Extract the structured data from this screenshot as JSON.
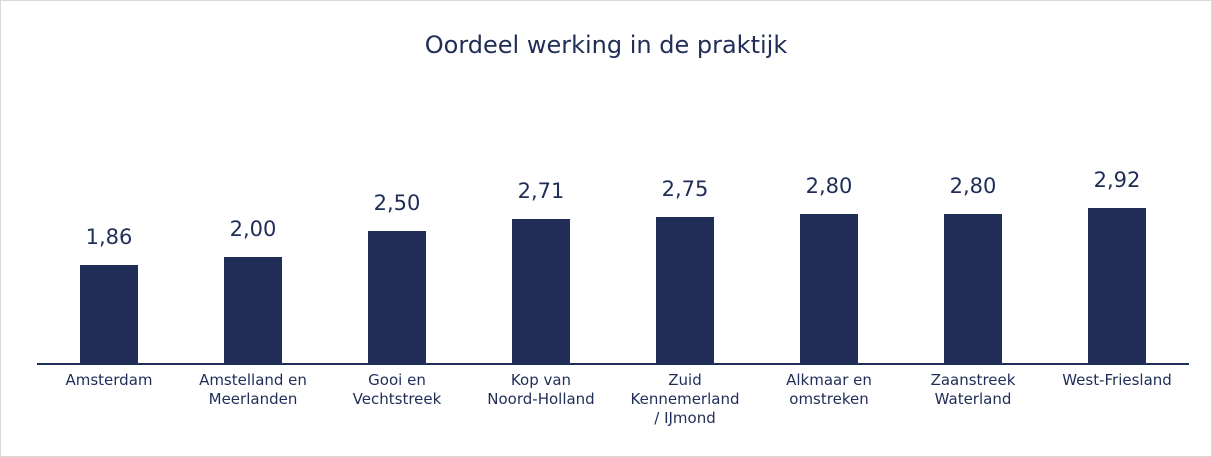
{
  "chart_data": {
    "type": "bar",
    "title": "Oordeel werking in de praktijk",
    "categories": [
      "Amsterdam",
      "Amstelland en\nMeerlanden",
      "Gooi en\nVechtstreek",
      "Kop van\nNoord-Holland",
      "Zuid\nKennemerland\n/ IJmond",
      "Alkmaar en\nomstreken",
      "Zaanstreek\nWaterland",
      "West-Friesland"
    ],
    "values": [
      1.86,
      2.0,
      2.5,
      2.71,
      2.75,
      2.8,
      2.8,
      2.92
    ],
    "value_labels": [
      "1,86",
      "2,00",
      "2,50",
      "2,71",
      "2,75",
      "2,80",
      "2,80",
      "2,92"
    ],
    "color": "#1f2d57",
    "ylim": [
      0,
      5
    ]
  }
}
